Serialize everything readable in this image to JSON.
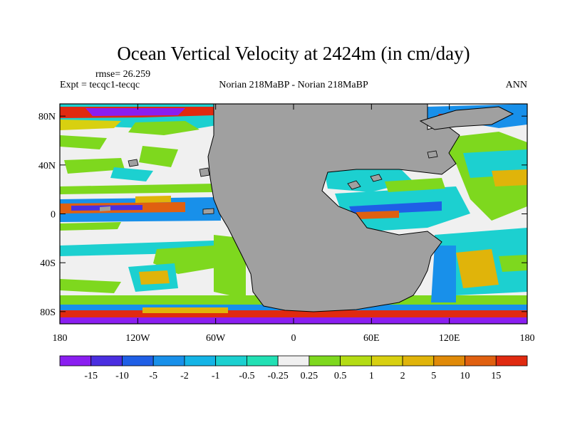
{
  "title": "Ocean Vertical Velocity at 2424m (in cm/day)",
  "rmse": "rmse= 26.259",
  "expt": "Expt = tecqc1-tecqc",
  "center_label": "Norian 218MaBP - Norian 218MaBP",
  "season": "ANN",
  "chart_data": {
    "type": "heatmap",
    "projection": "cylindrical-equidistant",
    "lon_range": [
      -180,
      180
    ],
    "lat_range": [
      -90,
      90
    ],
    "lon_ticks": [
      -180,
      -120,
      -60,
      0,
      60,
      120,
      180
    ],
    "lon_tick_labels": [
      "180",
      "120W",
      "60W",
      "0",
      "60E",
      "120E",
      "180"
    ],
    "lat_ticks": [
      80,
      40,
      0,
      -40,
      -80
    ],
    "lat_tick_labels": [
      "80N",
      "40N",
      "0",
      "40S",
      "80S"
    ],
    "colorbar": {
      "colors": [
        "#8a1ef0",
        "#4a2ee0",
        "#1f5fe6",
        "#1890ea",
        "#14b4e6",
        "#1cd0d0",
        "#22e0b4",
        "#f0f0f0",
        "#7ed81e",
        "#b4dc14",
        "#d8d010",
        "#e0b40a",
        "#e08a08",
        "#e06010",
        "#e02a10"
      ],
      "level_labels": [
        "-15",
        "-10",
        "-5",
        "-2",
        "-1",
        "-0.5",
        "-0.25",
        "0.25",
        "0.5",
        "1",
        "2",
        "5",
        "10",
        "15"
      ]
    },
    "land_color": "#a0a0a0"
  }
}
